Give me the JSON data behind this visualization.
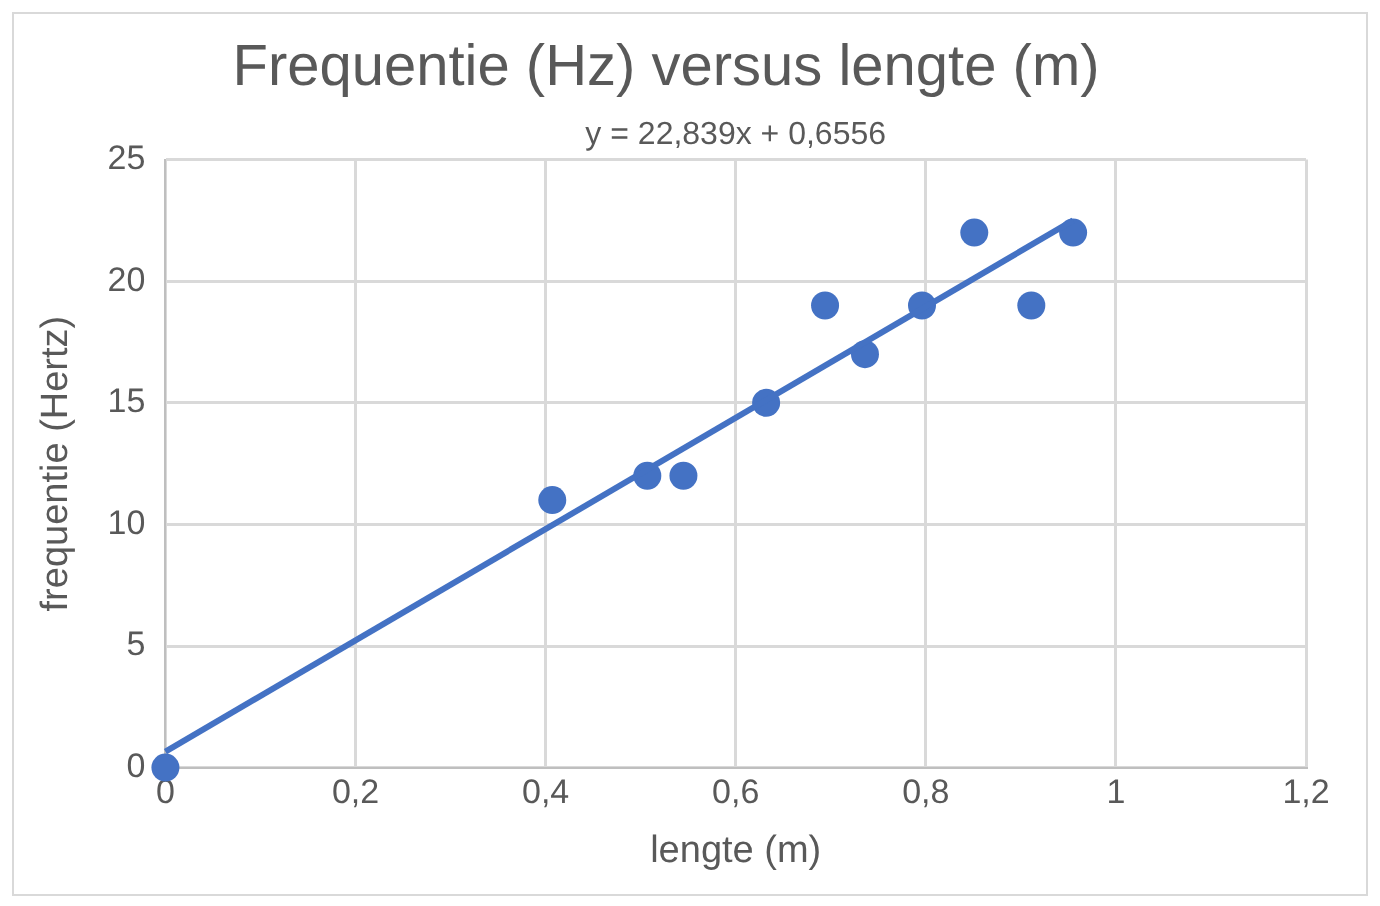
{
  "chart_data": {
    "type": "scatter",
    "title": "Frequentie (Hz) versus lengte (m)",
    "xlabel": "lengte (m)",
    "ylabel": "frequentie (Hertz)",
    "annotations": [
      "y = 22,839x + 0,6556"
    ],
    "series": [
      {
        "color": "#4472c4",
        "marker": "circle",
        "x": [
          0,
          0.407,
          0.507,
          0.545,
          0.632,
          0.694,
          0.736,
          0.796,
          0.851,
          0.911,
          0.955
        ],
        "values": [
          0,
          11,
          12,
          12,
          15,
          19,
          17,
          19,
          22,
          19,
          22
        ]
      },
      {
        "type": "line",
        "color": "#4472c4",
        "marker": "none",
        "x": [
          0,
          0.955
        ],
        "values": [
          0.66,
          22.5
        ]
      }
    ],
    "xlim": [
      0,
      1.2
    ],
    "xticks": [
      0,
      {
        "value": 0.2,
        "label": "0,2"
      },
      {
        "value": 0.4,
        "label": "0,4"
      },
      {
        "value": 0.6,
        "label": "0,6"
      },
      {
        "value": 0.8,
        "label": "0,8"
      },
      1,
      {
        "value": 1.2,
        "label": "1,2"
      }
    ],
    "ylim": [
      0,
      25
    ],
    "yticks": [
      0,
      5,
      10,
      15,
      20,
      25
    ],
    "grid": true,
    "legend": false,
    "line_style": "solid"
  }
}
